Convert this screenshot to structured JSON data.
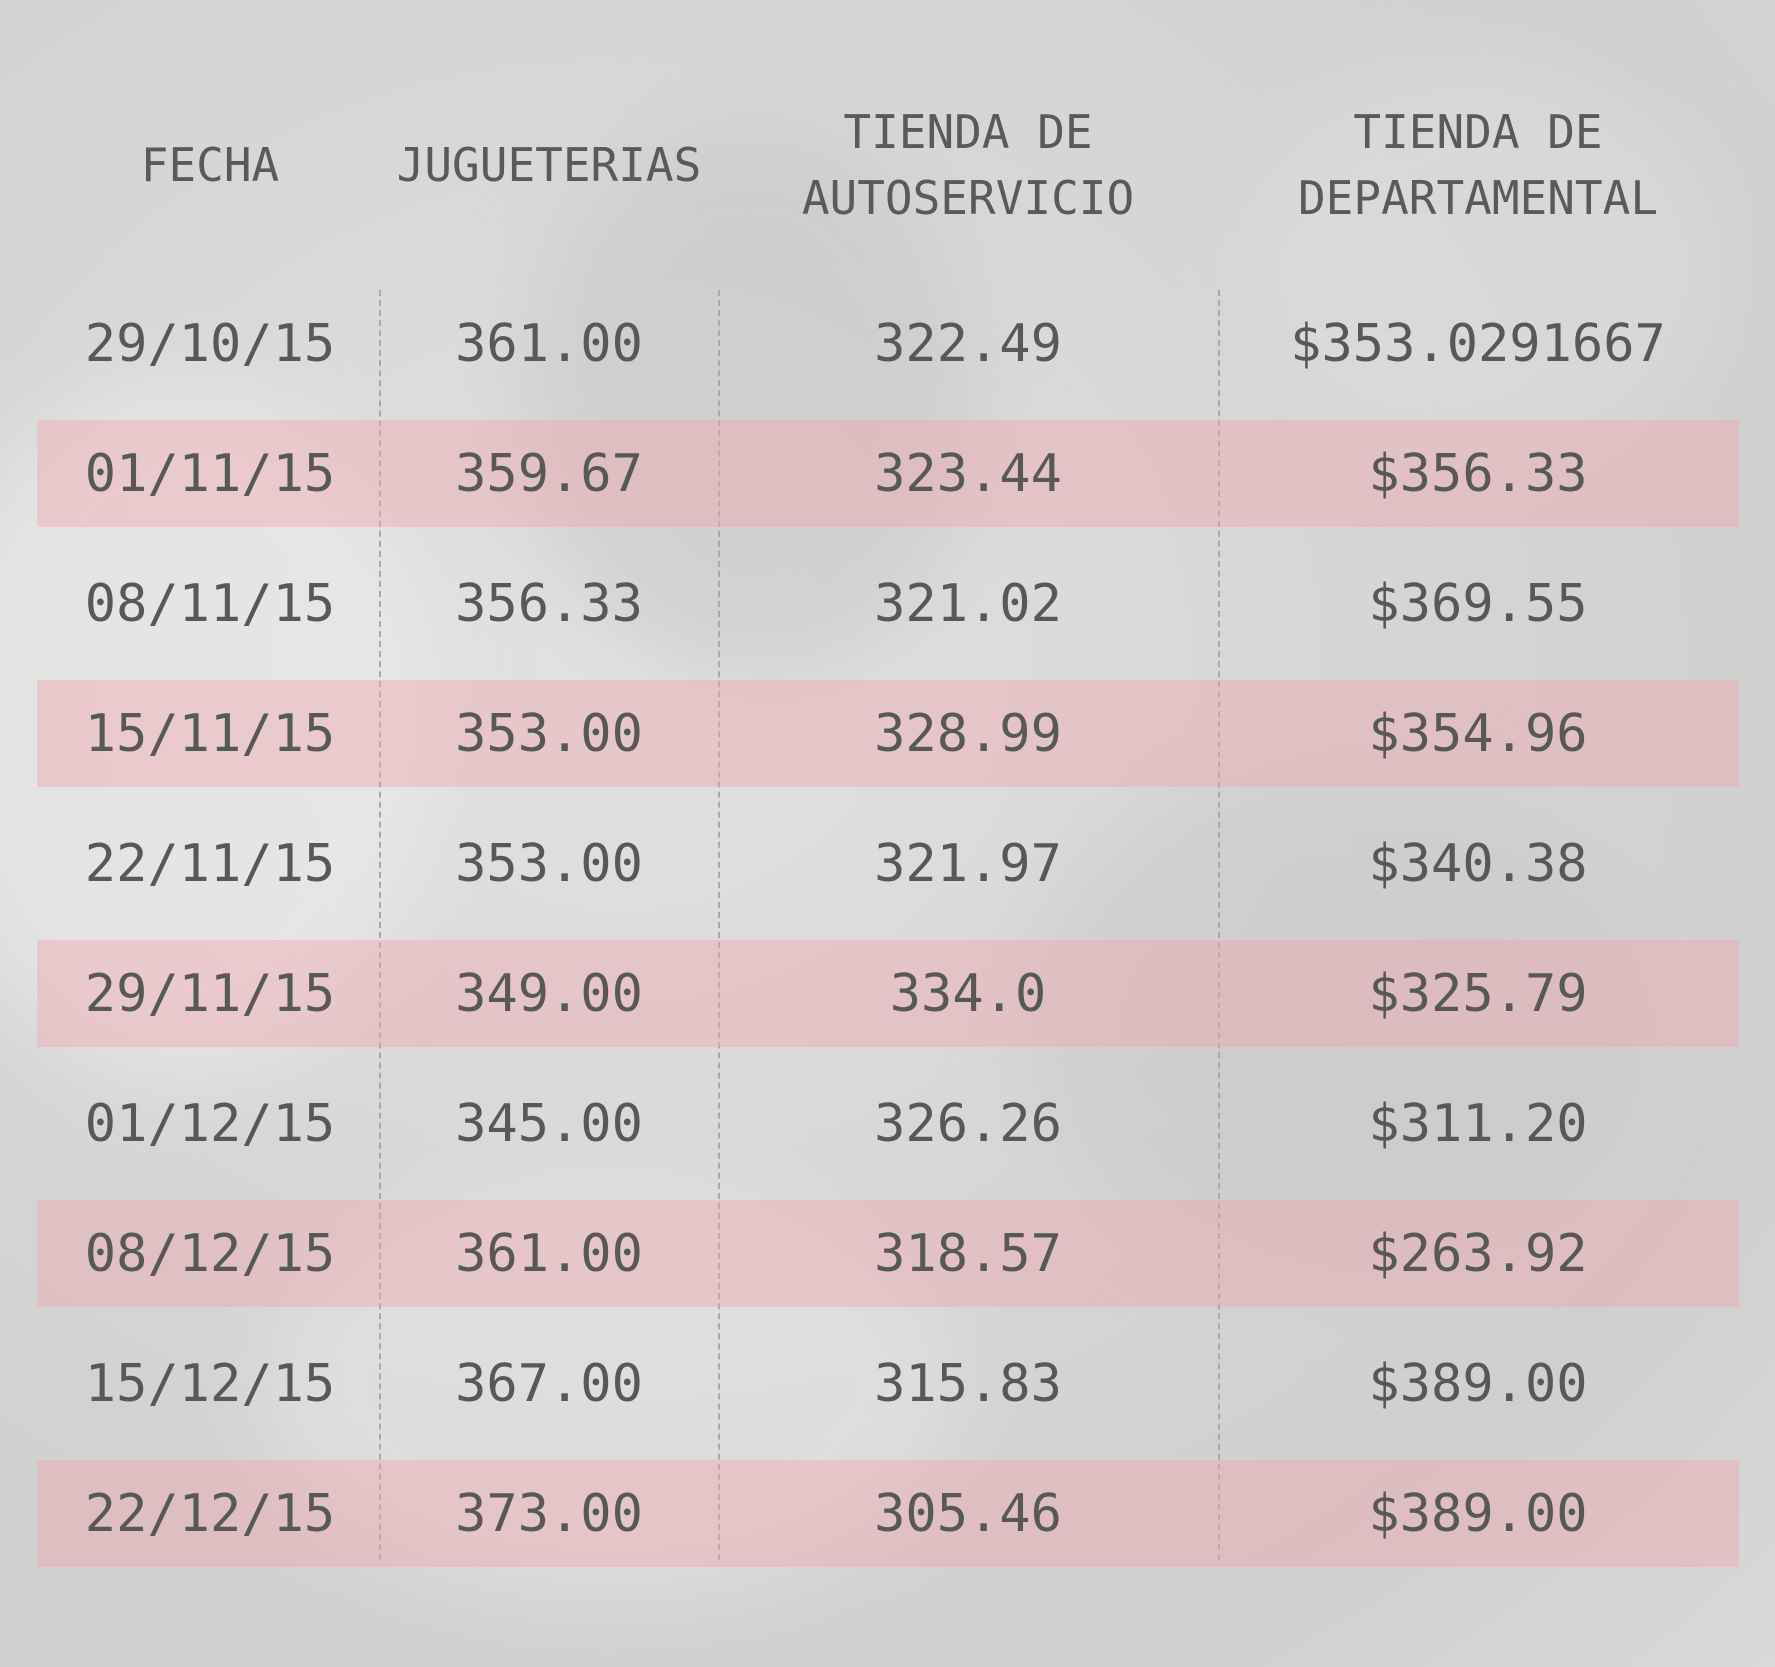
{
  "headers": {
    "fecha": "FECHA",
    "jugueterias": "JUGUETERIAS",
    "autoservicio": "TIENDA DE\nAUTOSERVICIO",
    "departamental": "TIENDA DE\nDEPARTAMENTAL"
  },
  "rows": [
    {
      "fecha": "29/10/15",
      "jugueterias": "361.00",
      "autoservicio": "322.49",
      "departamental": "$353.0291667"
    },
    {
      "fecha": "01/11/15",
      "jugueterias": "359.67",
      "autoservicio": "323.44",
      "departamental": "$356.33"
    },
    {
      "fecha": "08/11/15",
      "jugueterias": "356.33",
      "autoservicio": "321.02",
      "departamental": "$369.55"
    },
    {
      "fecha": "15/11/15",
      "jugueterias": "353.00",
      "autoservicio": "328.99",
      "departamental": "$354.96"
    },
    {
      "fecha": "22/11/15",
      "jugueterias": "353.00",
      "autoservicio": "321.97",
      "departamental": "$340.38"
    },
    {
      "fecha": "29/11/15",
      "jugueterias": "349.00",
      "autoservicio": "334.0",
      "departamental": "$325.79"
    },
    {
      "fecha": "01/12/15",
      "jugueterias": "345.00",
      "autoservicio": "326.26",
      "departamental": "$311.20"
    },
    {
      "fecha": "08/12/15",
      "jugueterias": "361.00",
      "autoservicio": "318.57",
      "departamental": "$263.92"
    },
    {
      "fecha": "15/12/15",
      "jugueterias": "367.00",
      "autoservicio": "315.83",
      "departamental": "$389.00"
    },
    {
      "fecha": "22/12/15",
      "jugueterias": "373.00",
      "autoservicio": "305.46",
      "departamental": "$389.00"
    }
  ],
  "colors": {
    "row_highlight": "#f0a5aa",
    "text": "#555555",
    "background": "#d6d6d6"
  },
  "chart_data": {
    "type": "table",
    "columns": [
      "FECHA",
      "JUGUETERIAS",
      "TIENDA DE AUTOSERVICIO",
      "TIENDA DE DEPARTAMENTAL"
    ],
    "categories": [
      "29/10/15",
      "01/11/15",
      "08/11/15",
      "15/11/15",
      "22/11/15",
      "29/11/15",
      "01/12/15",
      "08/12/15",
      "15/12/15",
      "22/12/15"
    ],
    "series": [
      {
        "name": "JUGUETERIAS",
        "values": [
          361.0,
          359.67,
          356.33,
          353.0,
          353.0,
          349.0,
          345.0,
          361.0,
          367.0,
          373.0
        ]
      },
      {
        "name": "TIENDA DE AUTOSERVICIO",
        "values": [
          322.49,
          323.44,
          321.02,
          328.99,
          321.97,
          334.0,
          326.26,
          318.57,
          315.83,
          305.46
        ]
      },
      {
        "name": "TIENDA DE DEPARTAMENTAL",
        "values": [
          353.0291667,
          356.33,
          369.55,
          354.96,
          340.38,
          325.79,
          311.2,
          263.92,
          389.0,
          389.0
        ]
      }
    ]
  }
}
